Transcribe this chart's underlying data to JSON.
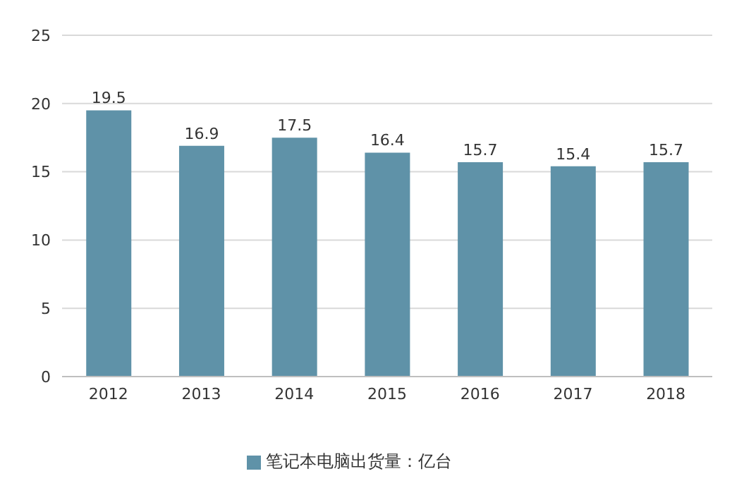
{
  "chart_data": {
    "type": "bar",
    "categories": [
      "2012",
      "2013",
      "2014",
      "2015",
      "2016",
      "2017",
      "2018"
    ],
    "series": [
      {
        "name": "笔记本电脑出货量：亿台",
        "color": "#5f92a8",
        "values": [
          19.5,
          16.9,
          17.5,
          16.4,
          15.7,
          15.4,
          15.7
        ]
      }
    ],
    "ylim": [
      0,
      25
    ],
    "yticks": [
      0,
      5,
      10,
      15,
      20,
      25
    ],
    "grid": "y",
    "legend": "bottom",
    "data_labels": true
  }
}
